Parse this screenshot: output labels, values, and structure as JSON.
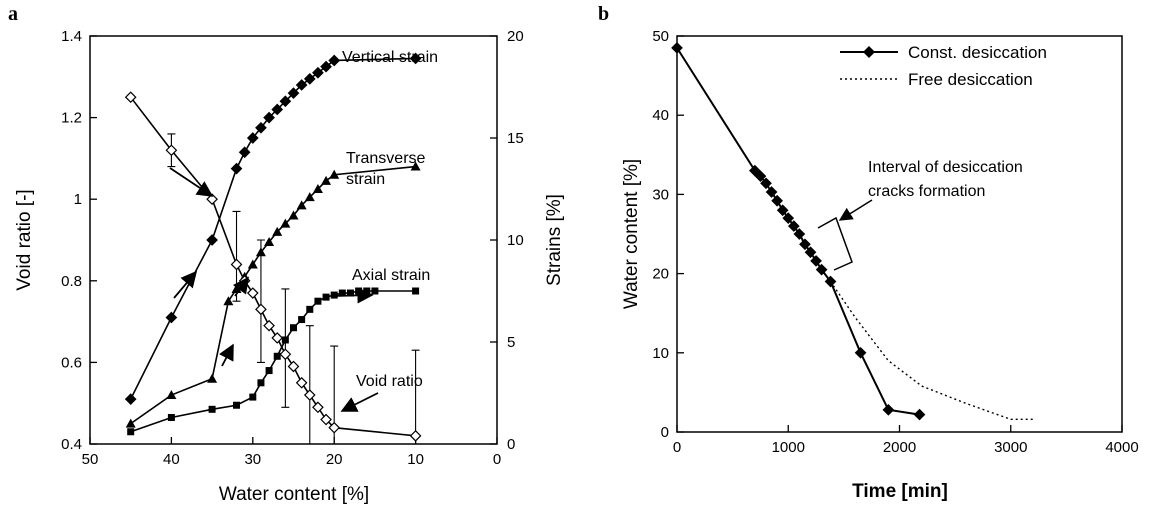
{
  "chart_data": [
    {
      "panel_label": "a",
      "type": "line",
      "xlabel": "Water content [%]",
      "ylabel": "Void ratio [-]",
      "y2label": "Strains [%]",
      "xlim": [
        50,
        0
      ],
      "ylim": [
        0.4,
        1.4
      ],
      "y2lim": [
        0,
        20
      ],
      "x_ticks": [
        "50",
        "40",
        "30",
        "20",
        "10",
        "0"
      ],
      "y_ticks": [
        "0.4",
        "0.6",
        "0.8",
        "1",
        "1.2",
        "1.4"
      ],
      "y2_ticks": [
        "0",
        "5",
        "10",
        "15",
        "20"
      ],
      "annotations": [
        "Vertical strain",
        "Transverse",
        "strain",
        "Axial strain",
        "Void ratio"
      ],
      "series": [
        {
          "axis": "right",
          "marker": "diamond-filled",
          "x": [
            45,
            40,
            35,
            32,
            31,
            30,
            29,
            28,
            27,
            26,
            25,
            24,
            23,
            22,
            21,
            20,
            10
          ],
          "y": [
            2.2,
            6.2,
            10.0,
            13.5,
            14.3,
            15.0,
            15.5,
            16.0,
            16.4,
            16.8,
            17.2,
            17.6,
            17.9,
            18.2,
            18.5,
            18.8,
            18.9
          ]
        },
        {
          "axis": "right",
          "marker": "triangle-filled",
          "x": [
            45,
            40,
            35,
            33,
            32,
            31,
            30,
            29,
            28,
            27,
            26,
            25,
            24,
            23,
            22,
            21,
            20,
            10
          ],
          "y": [
            1.0,
            2.4,
            3.2,
            7.0,
            7.6,
            8.2,
            8.8,
            9.4,
            9.9,
            10.4,
            10.8,
            11.2,
            11.7,
            12.1,
            12.5,
            12.9,
            13.2,
            13.6
          ]
        },
        {
          "axis": "right",
          "marker": "square-filled",
          "x": [
            45,
            40,
            35,
            32,
            30,
            29,
            28,
            27,
            26,
            25,
            24,
            23,
            22,
            21,
            20,
            19,
            18,
            17,
            16,
            15,
            10
          ],
          "y": [
            0.6,
            1.3,
            1.7,
            1.9,
            2.3,
            3.0,
            3.6,
            4.3,
            5.1,
            5.7,
            6.1,
            6.6,
            7.0,
            7.2,
            7.3,
            7.4,
            7.4,
            7.5,
            7.5,
            7.5,
            7.5
          ]
        },
        {
          "axis": "left",
          "marker": "diamond-open",
          "x": [
            45,
            40,
            35,
            32,
            31,
            30,
            29,
            28,
            27,
            26,
            25,
            24,
            23,
            22,
            21,
            20,
            10
          ],
          "y": [
            1.25,
            1.12,
            1.0,
            0.84,
            0.8,
            0.77,
            0.73,
            0.69,
            0.66,
            0.62,
            0.59,
            0.55,
            0.52,
            0.49,
            0.46,
            0.44,
            0.42
          ]
        }
      ],
      "error_bars": [
        {
          "x": 40,
          "low": 1.08,
          "high": 1.16
        },
        {
          "x": 32,
          "low": 0.75,
          "high": 0.97
        },
        {
          "x": 29,
          "low": 0.6,
          "high": 0.9
        },
        {
          "x": 26,
          "low": 0.49,
          "high": 0.78
        },
        {
          "x": 23,
          "low": 0.4,
          "high": 0.69
        },
        {
          "x": 20,
          "low": 0.4,
          "high": 0.64
        },
        {
          "x": 10,
          "low": 0.4,
          "high": 0.63
        }
      ]
    },
    {
      "panel_label": "b",
      "type": "line",
      "xlabel": "Time [min]",
      "ylabel": "Water content [%]",
      "xlim": [
        0,
        4000
      ],
      "ylim": [
        0,
        50
      ],
      "x_ticks": [
        "0",
        "1000",
        "2000",
        "3000",
        "4000"
      ],
      "y_ticks": [
        "0",
        "10",
        "20",
        "30",
        "40",
        "50"
      ],
      "annotation_lines": [
        "Interval of desiccation",
        "cracks formation"
      ],
      "series": [
        {
          "name": "Const. desiccation",
          "style": "solid",
          "marker": "diamond-filled",
          "x": [
            0,
            700,
            750,
            800,
            850,
            900,
            950,
            1000,
            1050,
            1100,
            1150,
            1200,
            1250,
            1300,
            1380,
            1650,
            1900,
            2180
          ],
          "y": [
            48.5,
            33.0,
            32.3,
            31.4,
            30.3,
            29.2,
            28.0,
            27.0,
            26.0,
            25.0,
            23.7,
            22.7,
            21.6,
            20.5,
            19.0,
            10.0,
            2.8,
            2.2
          ]
        },
        {
          "name": "Free desiccation",
          "style": "dotted",
          "x": [
            1380,
            1600,
            1900,
            2200,
            2600,
            3000,
            3200
          ],
          "y": [
            19.0,
            14.5,
            9.0,
            5.8,
            3.6,
            1.6,
            1.6
          ]
        }
      ]
    }
  ]
}
